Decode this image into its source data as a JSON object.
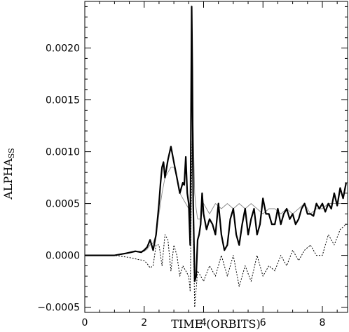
{
  "chart_data": {
    "type": "line",
    "title": "",
    "xlabel": "TIME (ORBITS)",
    "ylabel": "ALPHA",
    "ylabel_subscript": "SS",
    "xlim": [
      0,
      8.85
    ],
    "ylim": [
      -0.00055,
      0.00245
    ],
    "x_ticks": [
      0,
      2,
      4,
      6,
      8
    ],
    "x_tick_labels": [
      "0",
      "2",
      "4",
      "6",
      "8"
    ],
    "y_ticks": [
      -0.0005,
      0.0,
      0.0005,
      0.001,
      0.0015,
      0.002
    ],
    "y_tick_labels": [
      "−0.0005",
      "0.0000",
      "0.0005",
      "0.0010",
      "0.0015",
      "0.0020"
    ],
    "grid": false,
    "legend": "none",
    "series": [
      {
        "style": "thick-solid",
        "color": "#000000",
        "x": [
          0.0,
          0.3,
          0.6,
          1.0,
          1.4,
          1.7,
          1.9,
          2.0,
          2.1,
          2.2,
          2.3,
          2.4,
          2.5,
          2.55,
          2.6,
          2.65,
          2.7,
          2.8,
          2.9,
          3.0,
          3.1,
          3.2,
          3.3,
          3.35,
          3.4,
          3.45,
          3.5,
          3.55,
          3.58,
          3.6,
          3.62,
          3.65,
          3.7,
          3.75,
          3.8,
          3.85,
          3.9,
          3.95,
          4.0,
          4.1,
          4.2,
          4.3,
          4.4,
          4.5,
          4.6,
          4.7,
          4.8,
          4.9,
          5.0,
          5.1,
          5.2,
          5.3,
          5.4,
          5.5,
          5.6,
          5.7,
          5.8,
          5.9,
          6.0,
          6.1,
          6.2,
          6.3,
          6.4,
          6.5,
          6.6,
          6.7,
          6.8,
          6.9,
          7.0,
          7.1,
          7.2,
          7.3,
          7.4,
          7.5,
          7.6,
          7.7,
          7.8,
          7.9,
          8.0,
          8.1,
          8.2,
          8.3,
          8.4,
          8.5,
          8.6,
          8.7,
          8.8
        ],
        "y": [
          0.0,
          0.0,
          0.0,
          0.0,
          2e-05,
          4e-05,
          3e-05,
          5e-05,
          8e-05,
          0.00015,
          5e-05,
          0.0002,
          0.0005,
          0.0007,
          0.00085,
          0.0009,
          0.00075,
          0.00092,
          0.00105,
          0.0009,
          0.00075,
          0.0006,
          0.0007,
          0.00068,
          0.00095,
          0.0006,
          0.0005,
          0.0001,
          0.0015,
          0.0024,
          0.0018,
          0.0005,
          -0.00025,
          -0.0002,
          0.00015,
          0.0002,
          0.0003,
          0.0006,
          0.0004,
          0.00025,
          0.00035,
          0.0003,
          0.0002,
          0.0005,
          0.0002,
          5e-05,
          0.0001,
          0.00035,
          0.00045,
          0.0002,
          0.0001,
          0.0003,
          0.00045,
          0.0002,
          0.00035,
          0.00045,
          0.0002,
          0.0003,
          0.00055,
          0.0004,
          0.0004,
          0.0003,
          0.0003,
          0.00045,
          0.0003,
          0.0004,
          0.00045,
          0.00035,
          0.0004,
          0.0003,
          0.00035,
          0.00045,
          0.0005,
          0.0004,
          0.0004,
          0.00038,
          0.0005,
          0.00045,
          0.0005,
          0.00042,
          0.0005,
          0.00045,
          0.0006,
          0.00048,
          0.00065,
          0.00055,
          0.0007
        ]
      },
      {
        "style": "thin-solid",
        "color": "#888888",
        "x": [
          0.0,
          0.5,
          1.0,
          1.5,
          1.8,
          2.0,
          2.1,
          2.2,
          2.3,
          2.4,
          2.5,
          2.6,
          2.7,
          2.8,
          2.9,
          3.0,
          3.1,
          3.2,
          3.3,
          3.4,
          3.5,
          3.55,
          3.6,
          3.62,
          3.65,
          3.7,
          3.75,
          3.8,
          3.9,
          4.0,
          4.2,
          4.4,
          4.6,
          4.8,
          5.0,
          5.2,
          5.4,
          5.6,
          5.8,
          6.0,
          6.2,
          6.4,
          6.6,
          6.8,
          7.0,
          7.2,
          7.4,
          7.6,
          7.8,
          8.0,
          8.2,
          8.4,
          8.6,
          8.8
        ],
        "y": [
          0.0,
          0.0,
          0.0,
          2e-05,
          4e-05,
          4e-05,
          6e-05,
          0.0001,
          0.00012,
          0.0002,
          0.0004,
          0.0006,
          0.00075,
          0.0008,
          0.00085,
          0.00085,
          0.00075,
          0.0006,
          0.00055,
          0.0005,
          0.00045,
          0.0005,
          0.0015,
          0.0017,
          0.0012,
          0.0006,
          0.00045,
          0.00035,
          0.00035,
          0.0005,
          0.0004,
          0.0005,
          0.00045,
          0.0005,
          0.00045,
          0.0005,
          0.00045,
          0.0005,
          0.00045,
          0.0004,
          0.00045,
          0.00045,
          0.0004,
          0.00045,
          0.0004,
          0.00045,
          0.0005,
          0.0004,
          0.00045,
          0.00045,
          0.0005,
          0.0005,
          0.0005,
          0.0005
        ]
      },
      {
        "style": "dotted",
        "color": "#000000",
        "x": [
          0.0,
          0.5,
          1.0,
          1.5,
          1.8,
          2.0,
          2.1,
          2.2,
          2.3,
          2.4,
          2.5,
          2.6,
          2.7,
          2.8,
          2.9,
          3.0,
          3.1,
          3.2,
          3.3,
          3.4,
          3.5,
          3.55,
          3.6,
          3.62,
          3.65,
          3.7,
          3.8,
          3.9,
          4.0,
          4.2,
          4.4,
          4.6,
          4.8,
          5.0,
          5.2,
          5.4,
          5.6,
          5.8,
          6.0,
          6.2,
          6.4,
          6.6,
          6.8,
          7.0,
          7.2,
          7.4,
          7.6,
          7.8,
          8.0,
          8.2,
          8.4,
          8.6,
          8.8
        ],
        "y": [
          0.0,
          0.0,
          0.0,
          -2e-05,
          -4e-05,
          -5e-05,
          -8e-05,
          -0.00012,
          -0.0001,
          0.0001,
          0.0001,
          -0.0001,
          0.0002,
          0.00015,
          -0.00015,
          0.0001,
          0.0,
          -0.0002,
          -0.0001,
          -0.00015,
          -0.0002,
          -0.00035,
          0.0008,
          0.0011,
          0.0003,
          -0.0005,
          -0.00015,
          -0.0002,
          -0.00025,
          -0.0001,
          -0.0002,
          0.0,
          -0.0002,
          0.0,
          -0.0003,
          -0.0001,
          -0.00025,
          0.0,
          -0.0002,
          -0.0001,
          -0.00015,
          0.0,
          -0.0001,
          5e-05,
          -5e-05,
          5e-05,
          0.0001,
          0.0,
          0.0,
          0.0002,
          0.0001,
          0.00025,
          0.0003
        ]
      }
    ]
  }
}
